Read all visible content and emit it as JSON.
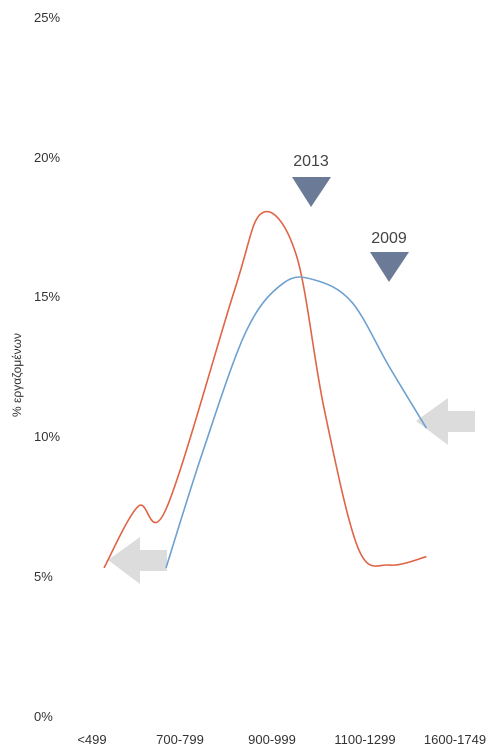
{
  "chart_data": {
    "type": "line",
    "ylabel": "% εργαζομένων",
    "ylim": [
      0,
      25
    ],
    "yticks": [
      "0%",
      "5%",
      "10%",
      "15%",
      "20%",
      "25%"
    ],
    "categories": [
      "<499",
      "700-799",
      "900-999",
      "1100-1299",
      "1600-1749"
    ],
    "series": [
      {
        "name": "2013",
        "color": "#e06446",
        "points": [
          [
            0,
            5.3
          ],
          [
            0.55,
            7.5
          ],
          [
            1.0,
            7.4
          ],
          [
            2.1,
            15.2
          ],
          [
            2.55,
            18.0
          ],
          [
            3.1,
            16.5
          ],
          [
            3.55,
            11.0
          ],
          [
            4.1,
            6.0
          ],
          [
            4.6,
            5.4
          ],
          [
            5.2,
            5.7
          ]
        ]
      },
      {
        "name": "2009",
        "color": "#6ea0d0",
        "points": [
          [
            1.0,
            5.3
          ],
          [
            1.6,
            9.5
          ],
          [
            2.3,
            13.8
          ],
          [
            2.9,
            15.5
          ],
          [
            3.4,
            15.6
          ],
          [
            4.0,
            14.8
          ],
          [
            4.6,
            12.5
          ],
          [
            5.2,
            10.3
          ]
        ]
      }
    ],
    "annotations": [
      {
        "text": "2013",
        "color": "#6b7a96",
        "x": 2.55,
        "y": 18.0
      },
      {
        "text": "2009",
        "color": "#6b7a96",
        "x": 3.55,
        "y": 15.6
      }
    ],
    "arrow_color": "#dcdcdc"
  }
}
